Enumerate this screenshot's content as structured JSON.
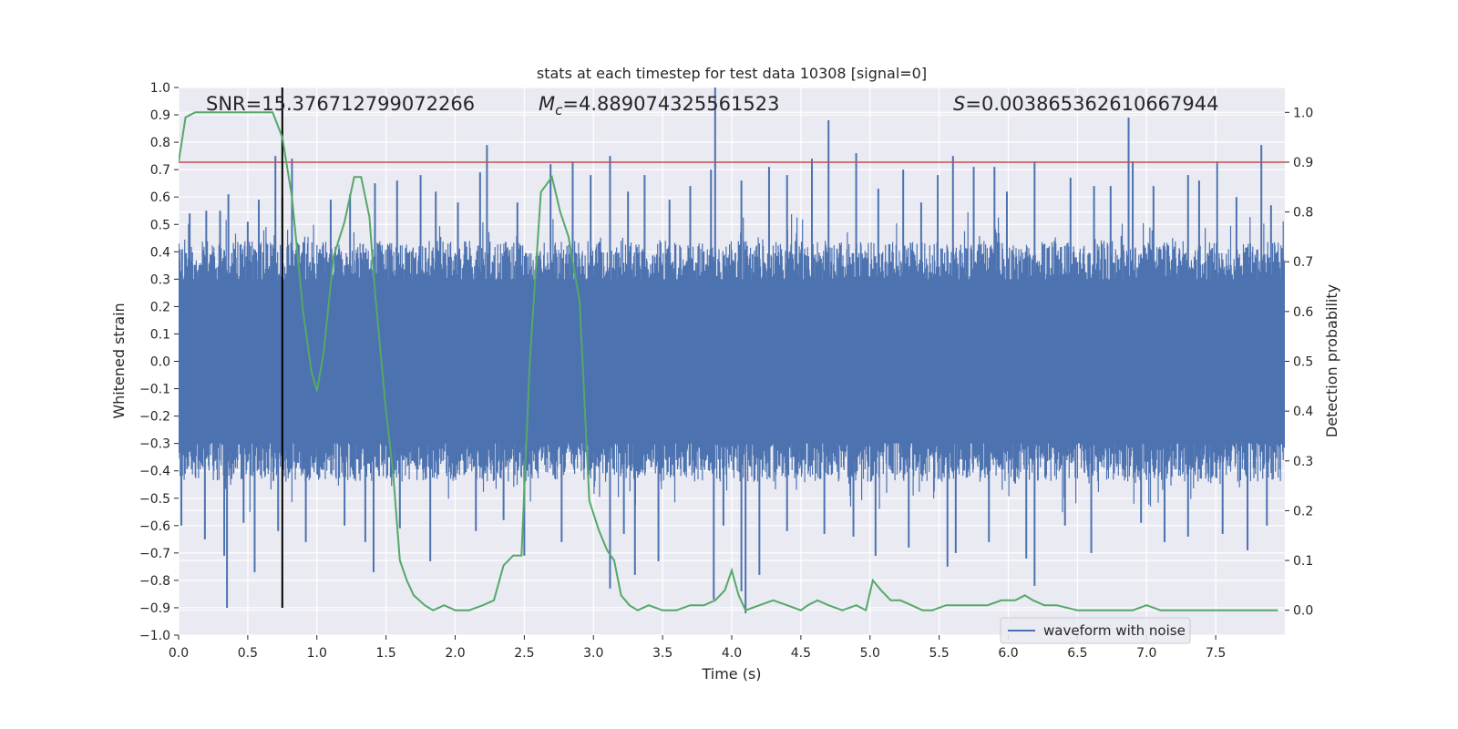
{
  "chart_data": {
    "type": "line",
    "title": "stats at each timestep for test data 10308 [signal=0]",
    "xlabel": "Time (s)",
    "ylabel_left": "Whitened strain",
    "ylabel_right": "Detection probability",
    "xlim": [
      0.0,
      8.0
    ],
    "ylim_left": [
      -1.0,
      1.0
    ],
    "ylim_right": [
      -0.05,
      1.05
    ],
    "x_ticks": [
      "0.0",
      "0.5",
      "1.0",
      "1.5",
      "2.0",
      "2.5",
      "3.0",
      "3.5",
      "4.0",
      "4.5",
      "5.0",
      "5.5",
      "6.0",
      "6.5",
      "7.0",
      "7.5"
    ],
    "y_left_ticks": [
      "1.0",
      "0.9",
      "0.8",
      "0.7",
      "0.6",
      "0.5",
      "0.4",
      "0.3",
      "0.2",
      "0.1",
      "0.0",
      "−0.1",
      "−0.2",
      "−0.3",
      "−0.4",
      "−0.5",
      "−0.6",
      "−0.7",
      "−0.8",
      "−0.9",
      "−1.0"
    ],
    "y_right_ticks": [
      "1.0",
      "0.9",
      "0.8",
      "0.7",
      "0.6",
      "0.5",
      "0.4",
      "0.3",
      "0.2",
      "0.1",
      "0.0"
    ],
    "grid": true,
    "legend_position": "bottom-right",
    "annotations": {
      "snr_label": "SNR",
      "snr_value": "15.376712799072266",
      "mc_symbol": "M",
      "mc_subscript": "c",
      "mc_value": "4.889074325561523",
      "s_symbol": "S",
      "s_value": "0.003865362610667944"
    },
    "threshold": {
      "value": 0.9,
      "axis": "right",
      "color": "#c44e52"
    },
    "marker": {
      "x": 0.75,
      "color": "#000000"
    },
    "series": [
      {
        "name": "waveform with noise",
        "axis": "left",
        "color": "#4c72b0",
        "style": "noise",
        "spikes_up": [
          [
            0.0,
            0.43
          ],
          [
            0.08,
            0.54
          ],
          [
            0.2,
            0.55
          ],
          [
            0.3,
            0.55
          ],
          [
            0.36,
            0.61
          ],
          [
            0.5,
            0.51
          ],
          [
            0.58,
            0.59
          ],
          [
            0.7,
            0.75
          ],
          [
            0.75,
            0.6
          ],
          [
            0.82,
            0.74
          ],
          [
            1.1,
            0.59
          ],
          [
            1.24,
            0.61
          ],
          [
            1.42,
            0.65
          ],
          [
            1.58,
            0.66
          ],
          [
            1.75,
            0.68
          ],
          [
            1.86,
            0.62
          ],
          [
            2.02,
            0.58
          ],
          [
            2.18,
            0.69
          ],
          [
            2.23,
            0.79
          ],
          [
            2.45,
            0.58
          ],
          [
            2.69,
            0.72
          ],
          [
            2.85,
            0.73
          ],
          [
            2.98,
            0.68
          ],
          [
            3.12,
            0.75
          ],
          [
            3.25,
            0.62
          ],
          [
            3.37,
            0.68
          ],
          [
            3.55,
            0.59
          ],
          [
            3.7,
            0.64
          ],
          [
            3.85,
            0.7
          ],
          [
            3.88,
            1.0
          ],
          [
            4.07,
            0.66
          ],
          [
            4.27,
            0.71
          ],
          [
            4.4,
            0.68
          ],
          [
            4.58,
            0.74
          ],
          [
            4.7,
            0.88
          ],
          [
            4.9,
            0.76
          ],
          [
            5.06,
            0.63
          ],
          [
            5.24,
            0.7
          ],
          [
            5.37,
            0.58
          ],
          [
            5.49,
            0.68
          ],
          [
            5.6,
            0.75
          ],
          [
            5.75,
            0.71
          ],
          [
            5.9,
            0.71
          ],
          [
            5.99,
            0.62
          ],
          [
            6.19,
            0.73
          ],
          [
            6.45,
            0.67
          ],
          [
            6.62,
            0.64
          ],
          [
            6.74,
            0.64
          ],
          [
            6.87,
            0.89
          ],
          [
            6.9,
            0.73
          ],
          [
            7.05,
            0.64
          ],
          [
            7.3,
            0.68
          ],
          [
            7.38,
            0.66
          ],
          [
            7.51,
            0.73
          ],
          [
            7.65,
            0.6
          ],
          [
            7.83,
            0.79
          ],
          [
            7.9,
            0.57
          ]
        ],
        "spikes_down": [
          [
            0.02,
            -0.6
          ],
          [
            0.19,
            -0.65
          ],
          [
            0.33,
            -0.71
          ],
          [
            0.35,
            -0.9
          ],
          [
            0.47,
            -0.59
          ],
          [
            0.55,
            -0.77
          ],
          [
            0.72,
            -0.62
          ],
          [
            0.92,
            -0.66
          ],
          [
            1.2,
            -0.6
          ],
          [
            1.35,
            -0.66
          ],
          [
            1.41,
            -0.77
          ],
          [
            1.6,
            -0.61
          ],
          [
            1.82,
            -0.73
          ],
          [
            2.15,
            -0.62
          ],
          [
            2.35,
            -0.58
          ],
          [
            2.5,
            -0.71
          ],
          [
            2.77,
            -0.66
          ],
          [
            3.12,
            -0.83
          ],
          [
            3.22,
            -0.63
          ],
          [
            3.3,
            -0.78
          ],
          [
            3.47,
            -0.73
          ],
          [
            3.87,
            -0.87
          ],
          [
            3.94,
            -0.6
          ],
          [
            4.07,
            -0.84
          ],
          [
            4.1,
            -0.92
          ],
          [
            4.2,
            -0.78
          ],
          [
            4.4,
            -0.62
          ],
          [
            4.67,
            -0.63
          ],
          [
            4.88,
            -0.64
          ],
          [
            5.04,
            -0.71
          ],
          [
            5.28,
            -0.68
          ],
          [
            5.56,
            -0.75
          ],
          [
            5.62,
            -0.7
          ],
          [
            5.86,
            -0.66
          ],
          [
            6.13,
            -0.72
          ],
          [
            6.19,
            -0.82
          ],
          [
            6.41,
            -0.6
          ],
          [
            6.6,
            -0.7
          ],
          [
            6.96,
            -0.59
          ],
          [
            7.13,
            -0.66
          ],
          [
            7.3,
            -0.64
          ],
          [
            7.55,
            -0.63
          ],
          [
            7.73,
            -0.69
          ],
          [
            7.87,
            -0.6
          ]
        ]
      },
      {
        "name": "Detection probability",
        "axis": "right",
        "color": "#55a868",
        "x": [
          0.0,
          0.05,
          0.12,
          0.25,
          0.4,
          0.55,
          0.68,
          0.75,
          0.82,
          0.9,
          0.96,
          1.0,
          1.05,
          1.12,
          1.2,
          1.27,
          1.32,
          1.38,
          1.42,
          1.5,
          1.55,
          1.6,
          1.65,
          1.7,
          1.78,
          1.84,
          1.92,
          2.0,
          2.1,
          2.2,
          2.28,
          2.35,
          2.42,
          2.48,
          2.54,
          2.62,
          2.7,
          2.76,
          2.82,
          2.9,
          2.97,
          3.04,
          3.1,
          3.15,
          3.2,
          3.26,
          3.32,
          3.4,
          3.5,
          3.6,
          3.7,
          3.8,
          3.88,
          3.95,
          4.0,
          4.05,
          4.1,
          4.2,
          4.3,
          4.4,
          4.5,
          4.55,
          4.62,
          4.7,
          4.8,
          4.9,
          4.97,
          5.02,
          5.08,
          5.15,
          5.22,
          5.3,
          5.38,
          5.45,
          5.55,
          5.65,
          5.75,
          5.85,
          5.95,
          6.05,
          6.12,
          6.18,
          6.26,
          6.35,
          6.5,
          6.65,
          6.8,
          6.9,
          7.0,
          7.1,
          7.2,
          7.3,
          7.45,
          7.6,
          7.75,
          7.95
        ],
        "values": [
          0.9,
          0.99,
          1.0,
          1.0,
          1.0,
          1.0,
          1.0,
          0.95,
          0.83,
          0.6,
          0.48,
          0.44,
          0.52,
          0.71,
          0.78,
          0.87,
          0.87,
          0.79,
          0.64,
          0.4,
          0.28,
          0.1,
          0.06,
          0.03,
          0.01,
          0.0,
          0.01,
          0.0,
          0.0,
          0.01,
          0.02,
          0.09,
          0.11,
          0.11,
          0.5,
          0.84,
          0.87,
          0.8,
          0.75,
          0.62,
          0.22,
          0.16,
          0.12,
          0.1,
          0.03,
          0.01,
          0.0,
          0.01,
          0.0,
          0.0,
          0.01,
          0.01,
          0.02,
          0.04,
          0.08,
          0.03,
          0.0,
          0.01,
          0.02,
          0.01,
          0.0,
          0.01,
          0.02,
          0.01,
          0.0,
          0.01,
          0.0,
          0.06,
          0.04,
          0.02,
          0.02,
          0.01,
          0.0,
          0.0,
          0.01,
          0.01,
          0.01,
          0.01,
          0.02,
          0.02,
          0.03,
          0.02,
          0.01,
          0.01,
          0.0,
          0.0,
          0.0,
          0.0,
          0.01,
          0.0,
          0.0,
          0.0,
          0.0,
          0.0,
          0.0,
          0.0
        ]
      }
    ]
  }
}
